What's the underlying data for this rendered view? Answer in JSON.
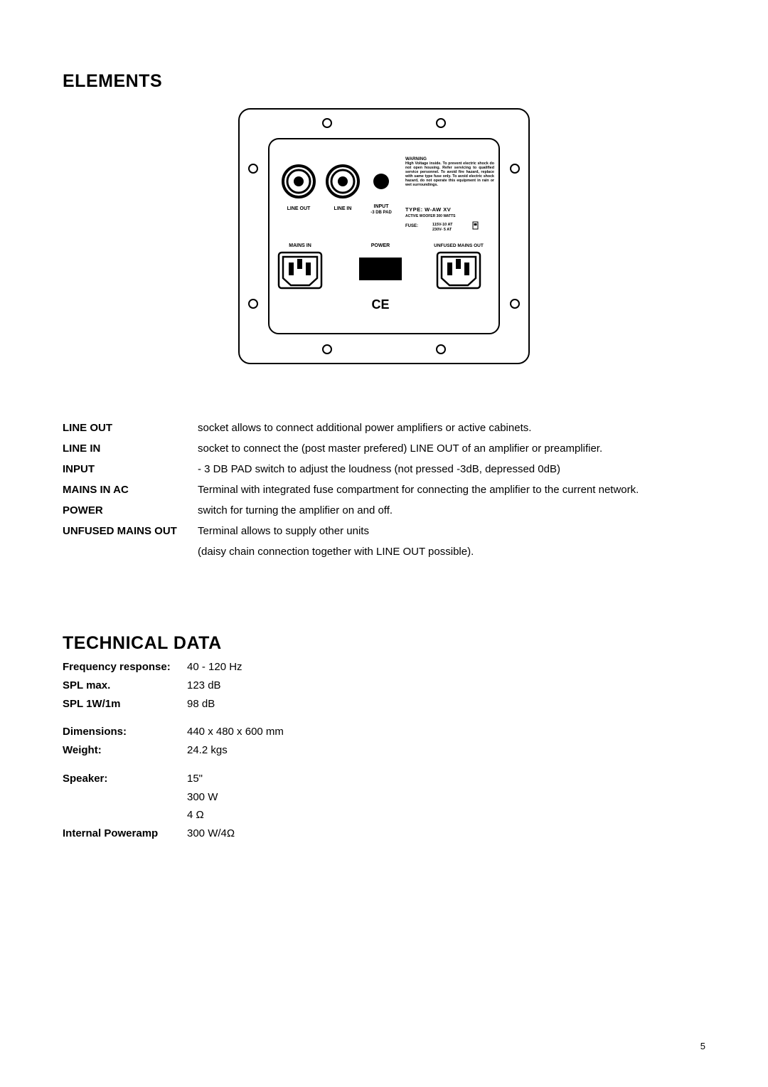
{
  "sections": {
    "elements_title": "ELEMENTS",
    "technical_title": "TECHNICAL DATA"
  },
  "diagram": {
    "panel_labels": {
      "line_out": "LINE OUT",
      "line_in": "LINE IN",
      "input": "INPUT",
      "input_sub": "-3 DB PAD",
      "mains_in": "MAINS IN",
      "power": "POWER",
      "unfused": "UNFUSED MAINS OUT"
    },
    "warning_block": {
      "heading": "WARNING",
      "body": "High Voltage inside. To prevent electric shock do not open housing. Refer servicing to qualified service personnel. To avoid fire hazard, replace with same type fuse only. To avoid electric shock hazard, do not operate this equipment in rain or wet surroundings."
    },
    "type_line": "TYPE:  W-AW  XV",
    "active_line": "ACTIVE WOOFER 300 WATTS",
    "fuse_label": "FUSE:",
    "fuse_val1": "115V-10 AT",
    "fuse_val2": "230V- 5 AT",
    "ce_mark": "CE"
  },
  "elements": [
    {
      "label": "LINE OUT",
      "desc": "socket allows to connect additional power amplifiers or active cabinets."
    },
    {
      "label": "LINE IN",
      "desc": "socket to connect the (post master prefered) LINE OUT of an amplifier or preamplifier."
    },
    {
      "label": "INPUT",
      "desc": "- 3 DB PAD switch to adjust the loudness (not pressed -3dB, depressed 0dB)"
    },
    {
      "label": "MAINS IN AC",
      "desc": "Terminal with integrated fuse compartment for connecting the amplifier to the current network."
    },
    {
      "label": "POWER",
      "desc": "switch for turning the amplifier on and off."
    },
    {
      "label": "UNFUSED MAINS OUT",
      "desc": "Terminal allows to supply other units"
    },
    {
      "label": "",
      "desc": "(daisy chain connection together with LINE OUT possible)."
    }
  ],
  "technical": [
    {
      "k": "Frequency response:",
      "v": "40 - 120 Hz"
    },
    {
      "k": "SPL max.",
      "v": "123 dB"
    },
    {
      "k": "SPL 1W/1m",
      "v": "98 dB"
    },
    {
      "spacer": true
    },
    {
      "k": "Dimensions:",
      "v": "440 x 480 x 600 mm"
    },
    {
      "k": "Weight:",
      "v": "24.2 kgs"
    },
    {
      "spacer": true
    },
    {
      "k": "Speaker:",
      "v": "15\""
    },
    {
      "k": "",
      "v": "300 W"
    },
    {
      "k": "",
      "v": "4 Ω"
    },
    {
      "k": "Internal Poweramp",
      "v": "300 W/4Ω"
    }
  ],
  "page_number": "5"
}
